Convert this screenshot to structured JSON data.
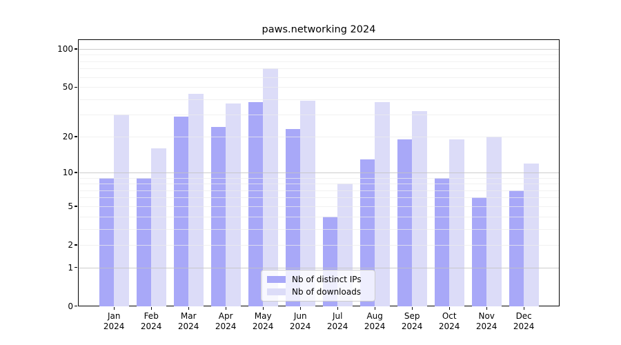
{
  "chart_data": {
    "type": "bar",
    "title": "paws.networking 2024",
    "categories": [
      "Jan",
      "Feb",
      "Mar",
      "Apr",
      "May",
      "Jun",
      "Jul",
      "Aug",
      "Sep",
      "Oct",
      "Nov",
      "Dec"
    ],
    "xtick_year": "2024",
    "series": [
      {
        "name": "Nb of distinct IPs",
        "color": "#a8a8f8",
        "values": [
          9,
          9,
          29,
          24,
          38,
          23,
          4,
          13,
          19,
          9,
          6,
          7
        ]
      },
      {
        "name": "Nb of downloads",
        "color": "#dcdcf8",
        "values": [
          30,
          16,
          44,
          37,
          70,
          39,
          8,
          38,
          32,
          19,
          20,
          12
        ]
      }
    ],
    "ylabel": "",
    "xlabel": "",
    "yscale": "log1p",
    "ylim": [
      0,
      115
    ],
    "yticks": [
      0,
      1,
      2,
      5,
      10,
      20,
      50,
      100
    ],
    "major_gridlines": [
      1,
      10,
      100
    ],
    "minor_gridlines": [
      2,
      3,
      4,
      5,
      6,
      7,
      8,
      9,
      20,
      30,
      40,
      50,
      60,
      70,
      80,
      90
    ],
    "grid": true,
    "legend_position": "lower center"
  }
}
